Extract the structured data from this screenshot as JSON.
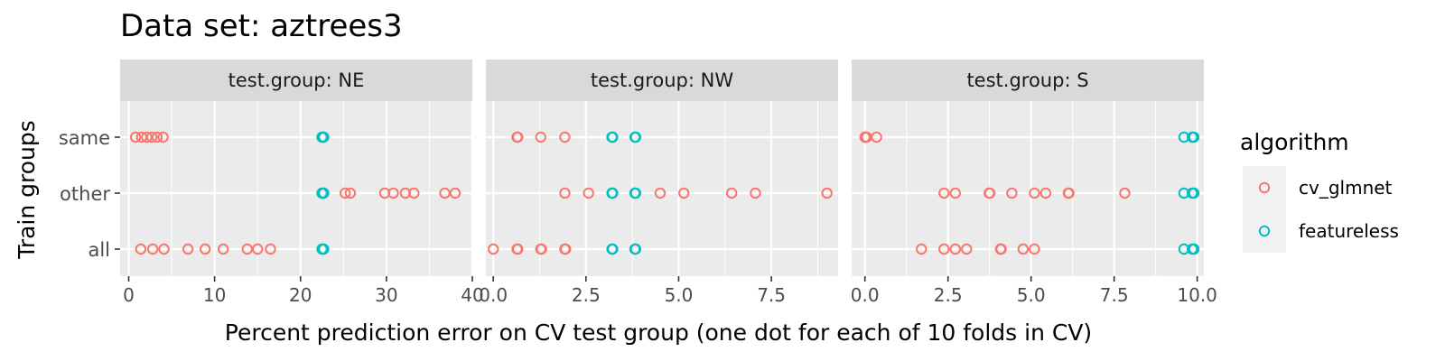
{
  "chart_data": {
    "type": "scatter",
    "title": "Data set: aztrees3",
    "xlabel": "Percent prediction error on CV test group (one dot for each of 10 folds in CV)",
    "ylabel": "Train groups",
    "y_categories": [
      "all",
      "other",
      "same"
    ],
    "legend": {
      "title": "algorithm",
      "position": "right",
      "entries": [
        {
          "name": "cv_glmnet",
          "color": "#F8766D"
        },
        {
          "name": "featureless",
          "color": "#00BFC4"
        }
      ]
    },
    "grid": true,
    "facet_prefix": "test.group: ",
    "panels": [
      {
        "strip": "test.group: NE",
        "xlim": [
          -1,
          40
        ],
        "xticks": [
          0,
          10,
          20,
          30,
          40
        ],
        "xtick_labels": [
          "0",
          "10",
          "20",
          "30",
          "40"
        ],
        "series": [
          {
            "name": "cv_glmnet",
            "points": {
              "same": [
                0.8,
                1.5,
                2.1,
                2.7,
                3.3,
                4.0
              ],
              "other": [
                25.2,
                25.8,
                29.8,
                30.8,
                32.2,
                33.2,
                36.8,
                38.0
              ],
              "all": [
                1.4,
                2.8,
                4.1,
                6.9,
                8.9,
                11.0,
                13.8,
                15.0,
                16.5
              ]
            }
          },
          {
            "name": "featureless",
            "points": {
              "same": [
                22.5,
                22.6,
                22.7
              ],
              "other": [
                22.5,
                22.6,
                22.7
              ],
              "all": [
                22.5,
                22.6,
                22.7
              ]
            }
          }
        ]
      },
      {
        "strip": "test.group: NW",
        "xlim": [
          -0.2,
          9.3
        ],
        "xticks": [
          0,
          2.5,
          5,
          7.5
        ],
        "xtick_labels": [
          "0.0",
          "2.5",
          "5.0",
          "7.5"
        ],
        "series": [
          {
            "name": "cv_glmnet",
            "points": {
              "same": [
                0.64,
                0.66,
                1.28,
                1.93
              ],
              "other": [
                1.93,
                2.57,
                4.5,
                5.14,
                6.43,
                7.07,
                9.0
              ],
              "all": [
                0.0,
                0.64,
                0.66,
                1.28,
                1.3,
                1.93,
                1.95
              ]
            }
          },
          {
            "name": "featureless",
            "points": {
              "same": [
                3.2,
                3.22,
                3.82,
                3.84
              ],
              "other": [
                3.2,
                3.22,
                3.82,
                3.84
              ],
              "all": [
                3.2,
                3.22,
                3.82,
                3.84
              ]
            }
          }
        ]
      },
      {
        "strip": "test.group: S",
        "xlim": [
          -0.4,
          10.2
        ],
        "xticks": [
          0,
          2.5,
          5,
          7.5,
          10
        ],
        "xtick_labels": [
          "0.0",
          "2.5",
          "5.0",
          "7.5",
          "10.0"
        ],
        "series": [
          {
            "name": "cv_glmnet",
            "points": {
              "same": [
                0.0,
                0.05,
                0.35
              ],
              "other": [
                2.38,
                2.72,
                3.74,
                3.76,
                4.42,
                5.1,
                5.44,
                6.12,
                6.14,
                7.82
              ],
              "all": [
                1.7,
                2.38,
                2.72,
                3.06,
                4.08,
                4.1,
                4.76,
                5.1
              ]
            }
          },
          {
            "name": "featureless",
            "points": {
              "same": [
                9.6,
                9.85,
                9.9
              ],
              "other": [
                9.6,
                9.85,
                9.9
              ],
              "all": [
                9.6,
                9.85,
                9.9
              ]
            }
          }
        ]
      }
    ]
  }
}
